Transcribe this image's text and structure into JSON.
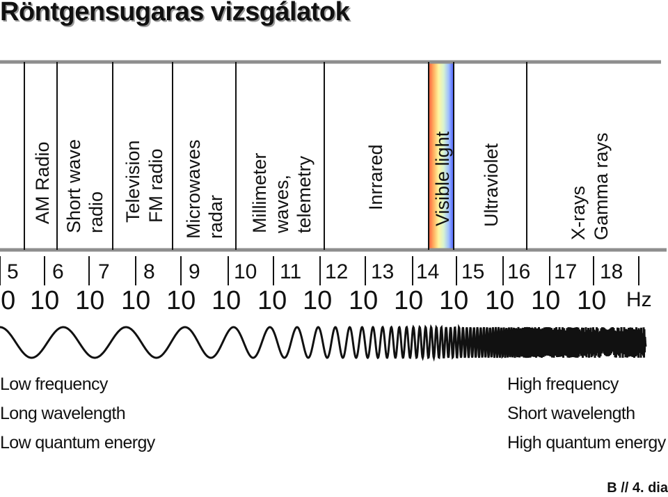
{
  "title": "Röntgensugaras vizsgálatok",
  "footer": "B // 4. dia",
  "bands": [
    {
      "lines": [
        "AM Radio"
      ]
    },
    {
      "lines": [
        "Short wave",
        "radio"
      ]
    },
    {
      "lines": [
        "Television",
        "FM radio"
      ]
    },
    {
      "lines": [
        "Microwaves",
        "radar"
      ]
    },
    {
      "lines": [
        "Millimeter",
        "waves,",
        "telemetry"
      ]
    },
    {
      "lines": [
        "Inrrared"
      ]
    },
    {
      "lines": [
        "Visible light"
      ]
    },
    {
      "lines": [
        "Ultraviolet"
      ]
    },
    {
      "lines": [
        "X-rays",
        "Gamma rays"
      ]
    }
  ],
  "frequency_scale": {
    "base": "10",
    "exponents": [
      "5",
      "6",
      "7",
      "8",
      "9",
      "10",
      "11",
      "12",
      "13",
      "14",
      "15",
      "16",
      "17",
      "18"
    ],
    "unit": "Hz"
  },
  "left_labels": [
    "Low frequency",
    "Long wavelength",
    "Low quantum energy"
  ],
  "right_labels": [
    "High frequency",
    "Short wavelength",
    "High quantum energy"
  ]
}
